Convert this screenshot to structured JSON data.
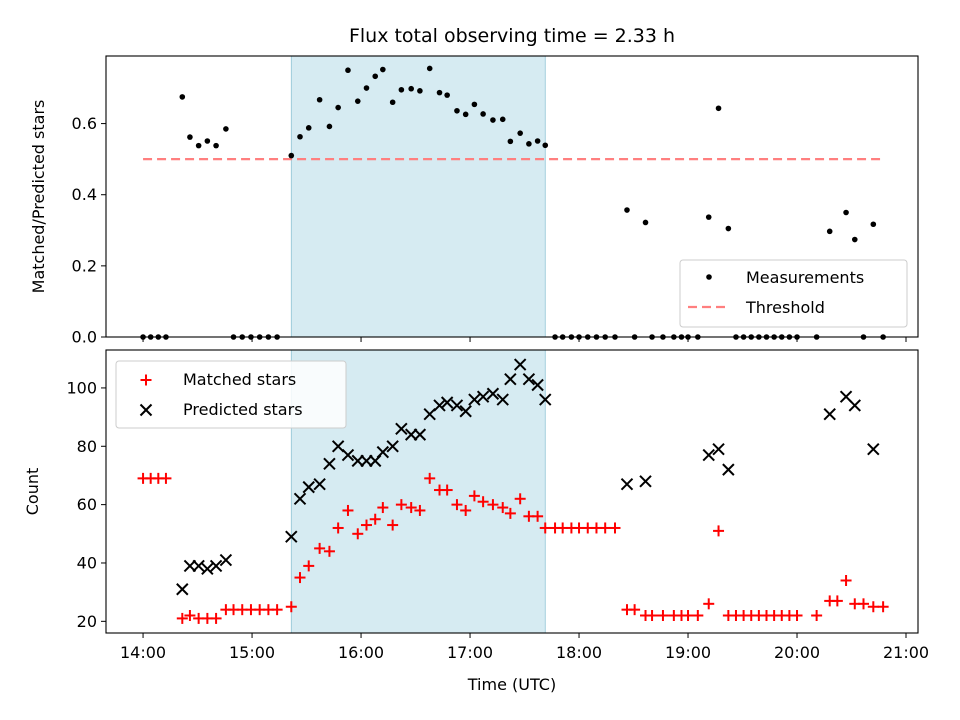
{
  "chart_data": [
    {
      "type": "scatter",
      "title": "Flux total observing time = 2.33 h",
      "ylabel": "Matched/Predicted stars",
      "ylim": [
        0,
        0.79
      ],
      "xlim": [
        13.66,
        21.11
      ],
      "yticks": [
        {
          "v": 0.0,
          "label": "0.0"
        },
        {
          "v": 0.2,
          "label": "0.2"
        },
        {
          "v": 0.4,
          "label": "0.4"
        },
        {
          "v": 0.6,
          "label": "0.6"
        }
      ],
      "shaded_span": [
        15.36,
        17.69
      ],
      "threshold": {
        "name": "Threshold",
        "y": 0.5,
        "x_range": [
          14.0,
          20.8
        ],
        "color": "#ff7f7f"
      },
      "legend": {
        "placement": "lower-right",
        "entries": [
          "Measurements",
          "Threshold"
        ]
      },
      "series": [
        {
          "name": "Measurements",
          "color": "#000000",
          "marker": "dot",
          "points": [
            [
              14.0,
              0.0
            ],
            [
              14.07,
              0.0
            ],
            [
              14.14,
              0.0
            ],
            [
              14.21,
              0.0
            ],
            [
              14.36,
              0.675
            ],
            [
              14.43,
              0.562
            ],
            [
              14.51,
              0.538
            ],
            [
              14.59,
              0.551
            ],
            [
              14.67,
              0.538
            ],
            [
              14.76,
              0.585
            ],
            [
              14.83,
              0.0
            ],
            [
              14.91,
              0.0
            ],
            [
              14.99,
              0.0
            ],
            [
              15.07,
              0.0
            ],
            [
              15.15,
              0.0
            ],
            [
              15.23,
              0.0
            ],
            [
              15.36,
              0.51
            ],
            [
              15.44,
              0.563
            ],
            [
              15.52,
              0.588
            ],
            [
              15.62,
              0.667
            ],
            [
              15.71,
              0.592
            ],
            [
              15.79,
              0.645
            ],
            [
              15.88,
              0.75
            ],
            [
              15.97,
              0.663
            ],
            [
              16.05,
              0.7
            ],
            [
              16.13,
              0.733
            ],
            [
              16.2,
              0.752
            ],
            [
              16.29,
              0.66
            ],
            [
              16.37,
              0.695
            ],
            [
              16.46,
              0.698
            ],
            [
              16.54,
              0.692
            ],
            [
              16.63,
              0.755
            ],
            [
              16.72,
              0.687
            ],
            [
              16.79,
              0.68
            ],
            [
              16.88,
              0.636
            ],
            [
              16.96,
              0.626
            ],
            [
              17.04,
              0.654
            ],
            [
              17.12,
              0.627
            ],
            [
              17.21,
              0.61
            ],
            [
              17.3,
              0.612
            ],
            [
              17.37,
              0.55
            ],
            [
              17.46,
              0.573
            ],
            [
              17.54,
              0.543
            ],
            [
              17.62,
              0.551
            ],
            [
              17.69,
              0.539
            ],
            [
              17.78,
              0.0
            ],
            [
              17.85,
              0.0
            ],
            [
              17.93,
              0.0
            ],
            [
              18.0,
              0.0
            ],
            [
              18.08,
              0.0
            ],
            [
              18.16,
              0.0
            ],
            [
              18.24,
              0.0
            ],
            [
              18.33,
              0.0
            ],
            [
              18.44,
              0.357
            ],
            [
              18.51,
              0.0
            ],
            [
              18.61,
              0.322
            ],
            [
              18.67,
              0.0
            ],
            [
              18.77,
              0.0
            ],
            [
              18.87,
              0.0
            ],
            [
              18.94,
              0.0
            ],
            [
              19.0,
              0.0
            ],
            [
              19.09,
              0.0
            ],
            [
              19.19,
              0.337
            ],
            [
              19.28,
              0.643
            ],
            [
              19.37,
              0.305
            ],
            [
              19.44,
              0.0
            ],
            [
              19.51,
              0.0
            ],
            [
              19.58,
              0.0
            ],
            [
              19.65,
              0.0
            ],
            [
              19.72,
              0.0
            ],
            [
              19.79,
              0.0
            ],
            [
              19.86,
              0.0
            ],
            [
              19.93,
              0.0
            ],
            [
              20.0,
              0.0
            ],
            [
              20.18,
              0.0
            ],
            [
              20.3,
              0.297
            ],
            [
              20.45,
              0.35
            ],
            [
              20.53,
              0.274
            ],
            [
              20.61,
              0.0
            ],
            [
              20.7,
              0.317
            ],
            [
              20.79,
              0.0
            ]
          ]
        }
      ]
    },
    {
      "type": "scatter",
      "xlabel": "Time (UTC)",
      "ylabel": "Count",
      "ylim": [
        16,
        113
      ],
      "xlim": [
        13.66,
        21.11
      ],
      "xticks": [
        {
          "v": 14,
          "label": "14:00"
        },
        {
          "v": 15,
          "label": "15:00"
        },
        {
          "v": 16,
          "label": "16:00"
        },
        {
          "v": 17,
          "label": "17:00"
        },
        {
          "v": 18,
          "label": "18:00"
        },
        {
          "v": 19,
          "label": "19:00"
        },
        {
          "v": 20,
          "label": "20:00"
        },
        {
          "v": 21,
          "label": "21:00"
        }
      ],
      "yticks": [
        {
          "v": 20,
          "label": "20"
        },
        {
          "v": 40,
          "label": "40"
        },
        {
          "v": 60,
          "label": "60"
        },
        {
          "v": 80,
          "label": "80"
        },
        {
          "v": 100,
          "label": "100"
        }
      ],
      "shaded_span": [
        15.36,
        17.69
      ],
      "legend": {
        "placement": "upper-left",
        "entries": [
          "Matched stars",
          "Predicted stars"
        ]
      },
      "series": [
        {
          "name": "Matched stars",
          "color": "#ff0000",
          "marker": "plus",
          "points": [
            [
              14.0,
              69
            ],
            [
              14.07,
              69
            ],
            [
              14.14,
              69
            ],
            [
              14.21,
              69
            ],
            [
              14.36,
              21
            ],
            [
              14.43,
              22
            ],
            [
              14.51,
              21
            ],
            [
              14.59,
              21
            ],
            [
              14.67,
              21
            ],
            [
              14.76,
              24
            ],
            [
              14.83,
              24
            ],
            [
              14.91,
              24
            ],
            [
              14.99,
              24
            ],
            [
              15.07,
              24
            ],
            [
              15.15,
              24
            ],
            [
              15.23,
              24
            ],
            [
              15.36,
              25
            ],
            [
              15.44,
              35
            ],
            [
              15.52,
              39
            ],
            [
              15.62,
              45
            ],
            [
              15.71,
              44
            ],
            [
              15.79,
              52
            ],
            [
              15.88,
              58
            ],
            [
              15.97,
              50
            ],
            [
              16.05,
              53
            ],
            [
              16.13,
              55
            ],
            [
              16.2,
              59
            ],
            [
              16.29,
              53
            ],
            [
              16.37,
              60
            ],
            [
              16.46,
              59
            ],
            [
              16.54,
              58
            ],
            [
              16.63,
              69
            ],
            [
              16.72,
              65
            ],
            [
              16.79,
              65
            ],
            [
              16.88,
              60
            ],
            [
              16.96,
              58
            ],
            [
              17.04,
              63
            ],
            [
              17.12,
              61
            ],
            [
              17.21,
              60
            ],
            [
              17.3,
              59
            ],
            [
              17.37,
              57
            ],
            [
              17.46,
              62
            ],
            [
              17.54,
              56
            ],
            [
              17.62,
              56
            ],
            [
              17.69,
              52
            ],
            [
              17.78,
              52
            ],
            [
              17.85,
              52
            ],
            [
              17.93,
              52
            ],
            [
              18.0,
              52
            ],
            [
              18.08,
              52
            ],
            [
              18.16,
              52
            ],
            [
              18.24,
              52
            ],
            [
              18.33,
              52
            ],
            [
              18.44,
              24
            ],
            [
              18.51,
              24
            ],
            [
              18.61,
              22
            ],
            [
              18.67,
              22
            ],
            [
              18.77,
              22
            ],
            [
              18.87,
              22
            ],
            [
              18.94,
              22
            ],
            [
              19.0,
              22
            ],
            [
              19.09,
              22
            ],
            [
              19.19,
              26
            ],
            [
              19.28,
              51
            ],
            [
              19.37,
              22
            ],
            [
              19.44,
              22
            ],
            [
              19.51,
              22
            ],
            [
              19.58,
              22
            ],
            [
              19.65,
              22
            ],
            [
              19.72,
              22
            ],
            [
              19.79,
              22
            ],
            [
              19.86,
              22
            ],
            [
              19.93,
              22
            ],
            [
              20.0,
              22
            ],
            [
              20.18,
              22
            ],
            [
              20.3,
              27
            ],
            [
              20.37,
              27
            ],
            [
              20.45,
              34
            ],
            [
              20.53,
              26
            ],
            [
              20.61,
              26
            ],
            [
              20.7,
              25
            ],
            [
              20.79,
              25
            ]
          ]
        },
        {
          "name": "Predicted stars",
          "color": "#000000",
          "marker": "x",
          "points": [
            [
              14.36,
              31
            ],
            [
              14.43,
              39
            ],
            [
              14.51,
              39
            ],
            [
              14.59,
              38
            ],
            [
              14.67,
              39
            ],
            [
              14.76,
              41
            ],
            [
              15.36,
              49
            ],
            [
              15.44,
              62
            ],
            [
              15.52,
              66
            ],
            [
              15.62,
              67
            ],
            [
              15.71,
              74
            ],
            [
              15.79,
              80
            ],
            [
              15.88,
              77
            ],
            [
              15.97,
              75
            ],
            [
              16.05,
              75
            ],
            [
              16.13,
              75
            ],
            [
              16.2,
              78
            ],
            [
              16.29,
              80
            ],
            [
              16.37,
              86
            ],
            [
              16.46,
              84
            ],
            [
              16.54,
              84
            ],
            [
              16.63,
              91
            ],
            [
              16.72,
              94
            ],
            [
              16.79,
              95
            ],
            [
              16.88,
              94
            ],
            [
              16.96,
              92
            ],
            [
              17.04,
              96
            ],
            [
              17.12,
              97
            ],
            [
              17.21,
              98
            ],
            [
              17.3,
              96
            ],
            [
              17.37,
              103
            ],
            [
              17.46,
              108
            ],
            [
              17.54,
              103
            ],
            [
              17.62,
              101
            ],
            [
              17.69,
              96
            ],
            [
              18.44,
              67
            ],
            [
              18.61,
              68
            ],
            [
              19.19,
              77
            ],
            [
              19.28,
              79
            ],
            [
              19.37,
              72
            ],
            [
              20.3,
              91
            ],
            [
              20.45,
              97
            ],
            [
              20.53,
              94
            ],
            [
              20.7,
              79
            ]
          ]
        }
      ]
    }
  ]
}
